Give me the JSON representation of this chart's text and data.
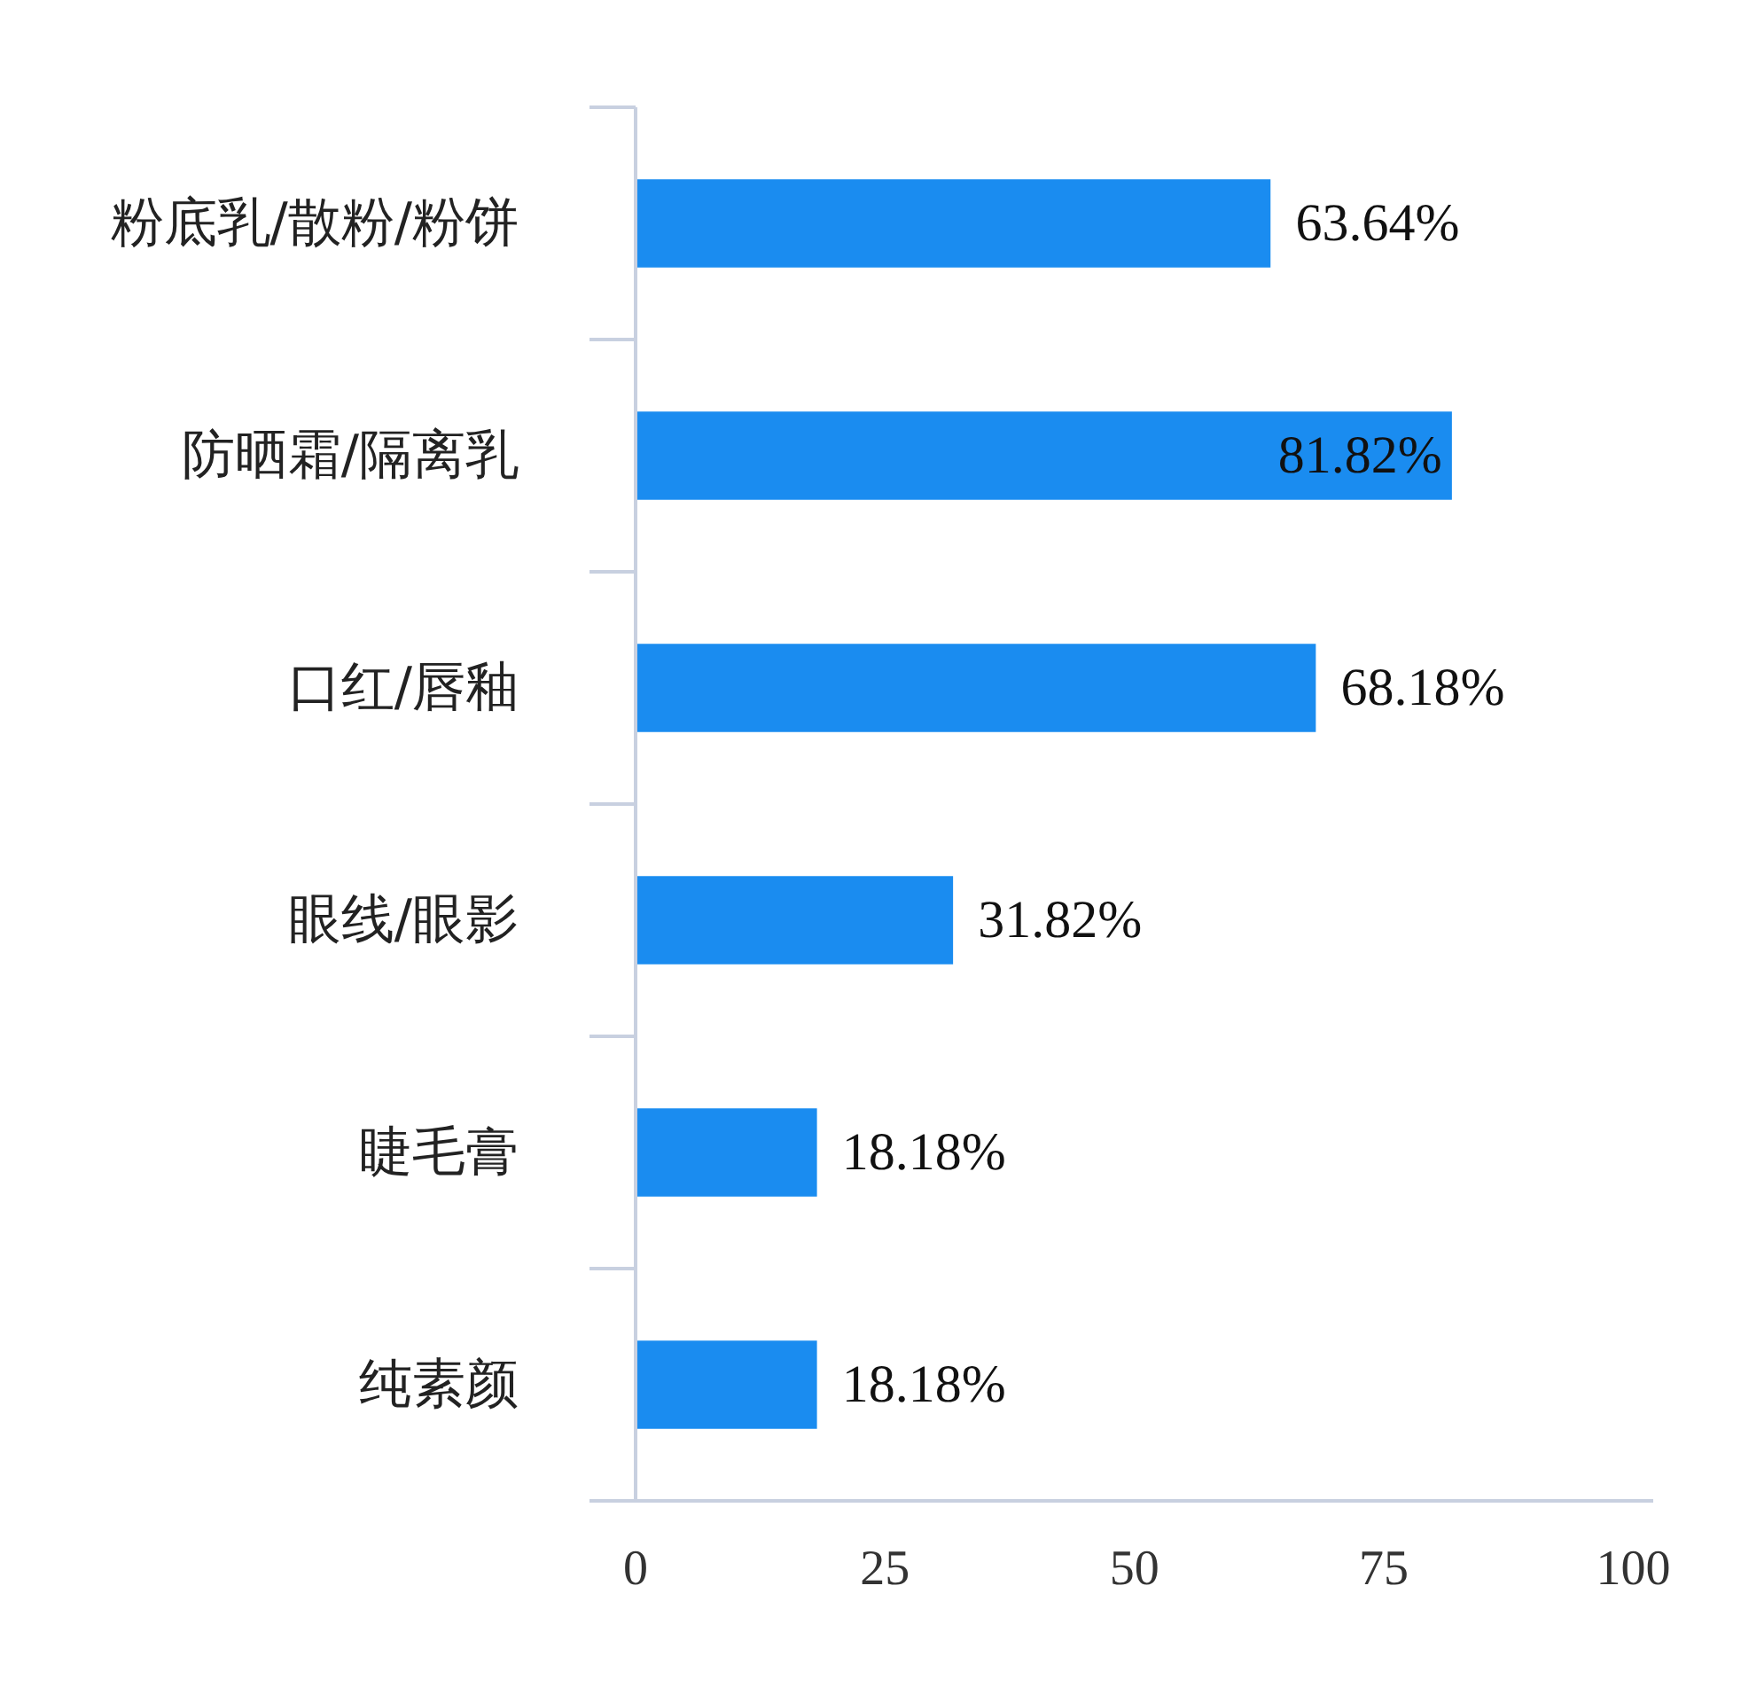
{
  "chart_data": {
    "type": "bar",
    "orientation": "horizontal",
    "categories": [
      "粉底乳/散粉/粉饼",
      "防晒霜/隔离乳",
      "口红/唇釉",
      "眼线/眼影",
      "睫毛膏",
      "纯素颜"
    ],
    "values": [
      63.64,
      81.82,
      68.18,
      31.82,
      18.18,
      18.18
    ],
    "value_labels": [
      "63.64%",
      "81.82%",
      "68.18%",
      "31.82%",
      "18.18%",
      "18.18%"
    ],
    "color": "#1a8cf0",
    "xlim": [
      0,
      102
    ],
    "xticks": [
      0,
      25,
      50,
      75,
      100
    ],
    "grid": false
  }
}
